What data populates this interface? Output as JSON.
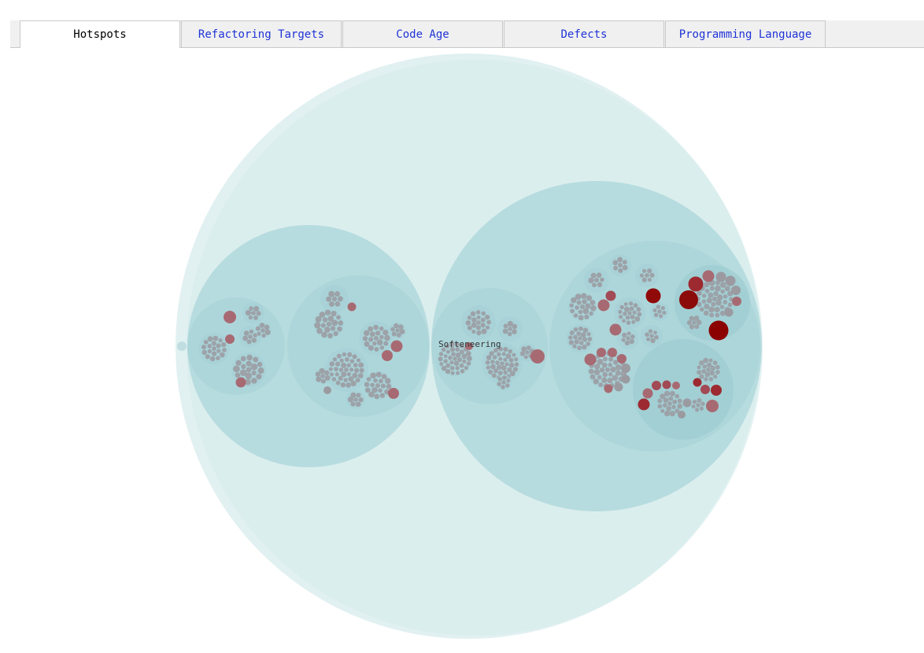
{
  "tabs": [
    {
      "label": "Hotspots",
      "active": true
    },
    {
      "label": "Refactoring Targets",
      "active": false
    },
    {
      "label": "Code Age",
      "active": false
    },
    {
      "label": "Defects",
      "active": false
    },
    {
      "label": "Programming Language",
      "active": false
    }
  ],
  "visualization": {
    "center_label": "Softeneering"
  },
  "colors": {
    "outer_circle": "#dcedef",
    "module_circle": "#b0d8dc",
    "package_circle": "#a4d0d5",
    "file_neutral": "#9a9aa0",
    "hotspot_light": "#a86a72",
    "hotspot_strong": "#8b0000",
    "tab_link": "#1f33d6"
  }
}
